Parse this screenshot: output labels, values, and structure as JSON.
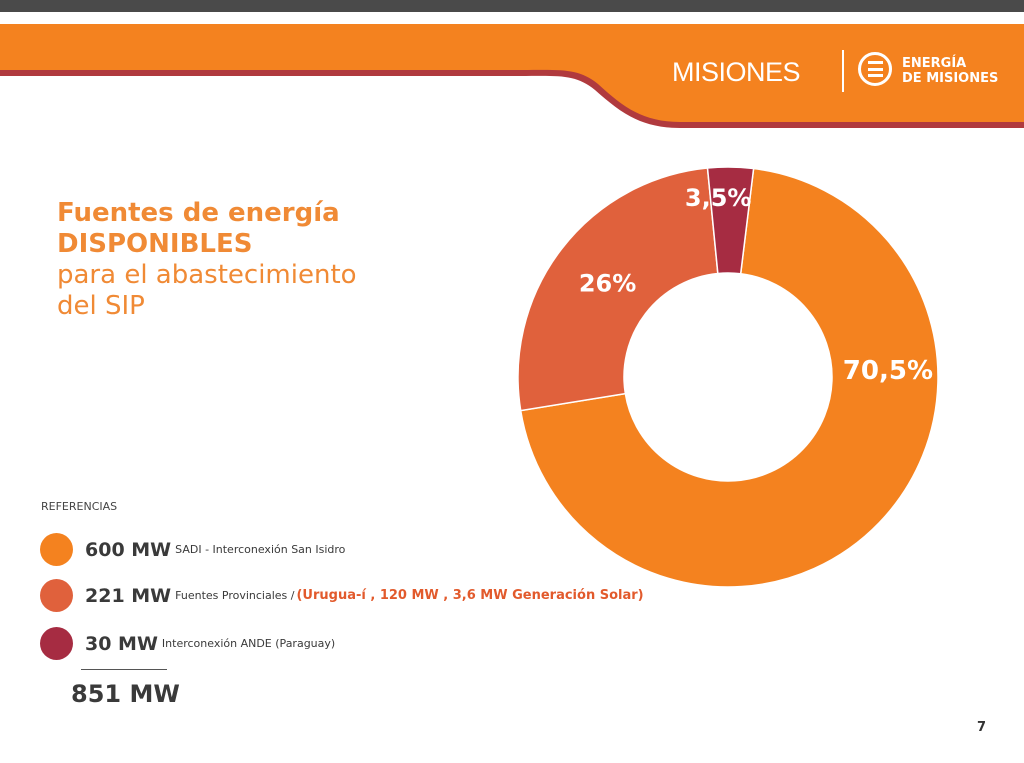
{
  "colors": {
    "orange": "#f4821f",
    "coral": "#e0613c",
    "maroon": "#a62c42",
    "header": "#f4821f",
    "header_edge": "#b03a3e",
    "title": "#f08a35"
  },
  "header": {
    "logo_misiones": "MISIONES",
    "logo_energia_line1": "ENERGÍA",
    "logo_energia_line2": "DE MISIONES"
  },
  "title": {
    "line1": "Fuentes de energía",
    "line2": "DISPONIBLES",
    "line3": "para el abastecimiento",
    "line4": "del SIP"
  },
  "chart_data": {
    "type": "pie",
    "style": "donut",
    "categories": [
      "SADI - Interconexión San Isidro",
      "Fuentes Provinciales",
      "Interconexión ANDE (Paraguay)"
    ],
    "values": [
      70.5,
      26,
      3.5
    ],
    "labels": [
      "70,5%",
      "26%",
      "3,5%"
    ],
    "colors": [
      "#f4821f",
      "#e0613c",
      "#a62c42"
    ]
  },
  "references": {
    "heading": "REFERENCIAS",
    "items": [
      {
        "mw": "600 MW",
        "desc": "SADI - Interconexión San Isidro",
        "extra": ""
      },
      {
        "mw": "221 MW",
        "desc": "Fuentes Provinciales /",
        "extra": "(Urugua-í , 120 MW ,  3,6  MW Generación Solar)"
      },
      {
        "mw": "30 MW",
        "desc": "Interconexión ANDE (Paraguay)",
        "extra": ""
      }
    ],
    "total": "851 MW"
  },
  "page_number": "7"
}
